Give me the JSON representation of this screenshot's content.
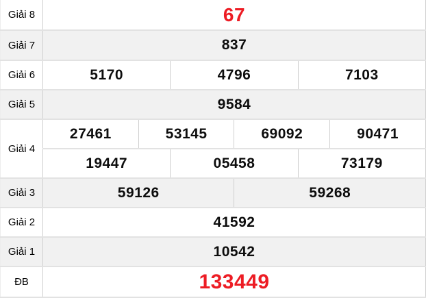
{
  "colors": {
    "accent_red": "#ed1c24",
    "row_shade": "#f1f1f1"
  },
  "prizes": [
    {
      "label": "Giải 8",
      "highlight": true,
      "shade": false,
      "rows": [
        [
          "67"
        ]
      ]
    },
    {
      "label": "Giải 7",
      "highlight": false,
      "shade": true,
      "rows": [
        [
          "837"
        ]
      ]
    },
    {
      "label": "Giải 6",
      "highlight": false,
      "shade": false,
      "rows": [
        [
          "5170",
          "4796",
          "7103"
        ]
      ]
    },
    {
      "label": "Giải 5",
      "highlight": false,
      "shade": true,
      "rows": [
        [
          "9584"
        ]
      ]
    },
    {
      "label": "Giải 4",
      "highlight": false,
      "shade": false,
      "rows": [
        [
          "27461",
          "53145",
          "69092",
          "90471"
        ],
        [
          "19447",
          "05458",
          "73179"
        ]
      ]
    },
    {
      "label": "Giải 3",
      "highlight": false,
      "shade": true,
      "rows": [
        [
          "59126",
          "59268"
        ]
      ]
    },
    {
      "label": "Giải 2",
      "highlight": false,
      "shade": false,
      "rows": [
        [
          "41592"
        ]
      ]
    },
    {
      "label": "Giải 1",
      "highlight": false,
      "shade": true,
      "rows": [
        [
          "10542"
        ]
      ]
    },
    {
      "label": "ĐB",
      "highlight": true,
      "shade": false,
      "rows": [
        [
          "133449"
        ]
      ]
    }
  ]
}
